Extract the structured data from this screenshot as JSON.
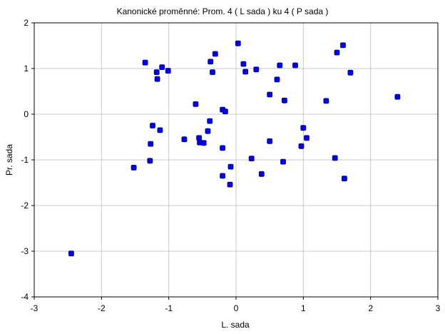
{
  "chart_data": {
    "type": "scatter",
    "title": "Kanonické proměnné: Prom.    4 ( L sada ) ku    4 ( P sada )",
    "xlabel": "L. sada",
    "ylabel": "Pr. sada",
    "xlim": [
      -3,
      3
    ],
    "ylim": [
      -4,
      2
    ],
    "xticks": [
      "-3",
      "-2",
      "-1",
      "0",
      "1",
      "2",
      "3"
    ],
    "yticks": [
      "2",
      "1",
      "0",
      "-1",
      "-2",
      "-3",
      "-4"
    ],
    "grid": true,
    "marker_color": "#0000ee",
    "points": [
      {
        "x": -1.35,
        "y": 1.13
      },
      {
        "x": -1.18,
        "y": 0.92
      },
      {
        "x": -1.17,
        "y": 0.77
      },
      {
        "x": -1.1,
        "y": 1.03
      },
      {
        "x": -1.01,
        "y": 0.95
      },
      {
        "x": -1.24,
        "y": -0.25
      },
      {
        "x": -1.13,
        "y": -0.35
      },
      {
        "x": -1.27,
        "y": -0.65
      },
      {
        "x": -1.28,
        "y": -1.02
      },
      {
        "x": -1.52,
        "y": -1.17
      },
      {
        "x": -2.45,
        "y": -3.05
      },
      {
        "x": -0.77,
        "y": -0.55
      },
      {
        "x": -0.6,
        "y": 0.22
      },
      {
        "x": -0.55,
        "y": -0.52
      },
      {
        "x": -0.54,
        "y": -0.62
      },
      {
        "x": -0.48,
        "y": -0.63
      },
      {
        "x": -0.42,
        "y": -0.37
      },
      {
        "x": -0.39,
        "y": -0.15
      },
      {
        "x": -0.38,
        "y": 1.15
      },
      {
        "x": -0.35,
        "y": 0.92
      },
      {
        "x": -0.31,
        "y": 1.32
      },
      {
        "x": -0.2,
        "y": 0.1
      },
      {
        "x": -0.16,
        "y": 0.06
      },
      {
        "x": -0.2,
        "y": -0.74
      },
      {
        "x": -0.2,
        "y": -1.35
      },
      {
        "x": -0.08,
        "y": -1.15
      },
      {
        "x": -0.09,
        "y": -1.54
      },
      {
        "x": 0.03,
        "y": 1.55
      },
      {
        "x": 0.11,
        "y": 1.1
      },
      {
        "x": 0.14,
        "y": 0.93
      },
      {
        "x": 0.3,
        "y": 0.98
      },
      {
        "x": 0.23,
        "y": -0.97
      },
      {
        "x": 0.38,
        "y": -1.31
      },
      {
        "x": 0.5,
        "y": 0.43
      },
      {
        "x": 0.5,
        "y": -0.59
      },
      {
        "x": 0.61,
        "y": 0.76
      },
      {
        "x": 0.65,
        "y": 1.07
      },
      {
        "x": 0.72,
        "y": 0.3
      },
      {
        "x": 0.7,
        "y": -1.04
      },
      {
        "x": 0.88,
        "y": 1.07
      },
      {
        "x": 0.97,
        "y": -0.7
      },
      {
        "x": 1.0,
        "y": -0.3
      },
      {
        "x": 1.05,
        "y": -0.52
      },
      {
        "x": 1.34,
        "y": 0.29
      },
      {
        "x": 1.47,
        "y": -0.96
      },
      {
        "x": 1.5,
        "y": 1.35
      },
      {
        "x": 1.59,
        "y": 1.51
      },
      {
        "x": 1.61,
        "y": -1.41
      },
      {
        "x": 1.7,
        "y": 0.91
      },
      {
        "x": 2.4,
        "y": 0.38
      }
    ]
  }
}
